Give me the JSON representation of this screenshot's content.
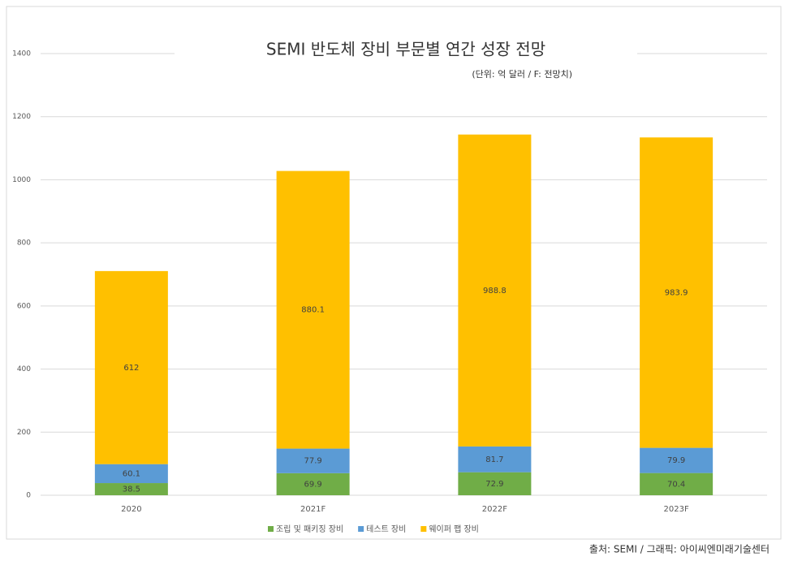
{
  "chart_data": {
    "type": "stacked_bar",
    "title": "SEMI 반도체 장비 부문별 연간 성장 전망",
    "subtitle": "(단위: 억 달러 / F: 전망치)",
    "categories": [
      "2020",
      "2021F",
      "2022F",
      "2023F"
    ],
    "series": [
      {
        "name": "조립 및 패키징 장비",
        "color": "#70ad47",
        "values": [
          38.5,
          69.9,
          72.9,
          70.4
        ]
      },
      {
        "name": "테스트 장비",
        "color": "#5b9bd5",
        "values": [
          60.1,
          77.9,
          81.7,
          79.9
        ]
      },
      {
        "name": "웨이퍼 팹 장비",
        "color": "#ffc000",
        "values": [
          612,
          880.1,
          988.8,
          983.9
        ]
      }
    ],
    "ylim": [
      0,
      1400
    ],
    "yticks": [
      0,
      200,
      400,
      600,
      800,
      1000,
      1200,
      1400
    ],
    "grid": true,
    "legend": "bottom",
    "source": "출처: SEMI / 그래픽: 아이씨엔미래기술센터"
  }
}
